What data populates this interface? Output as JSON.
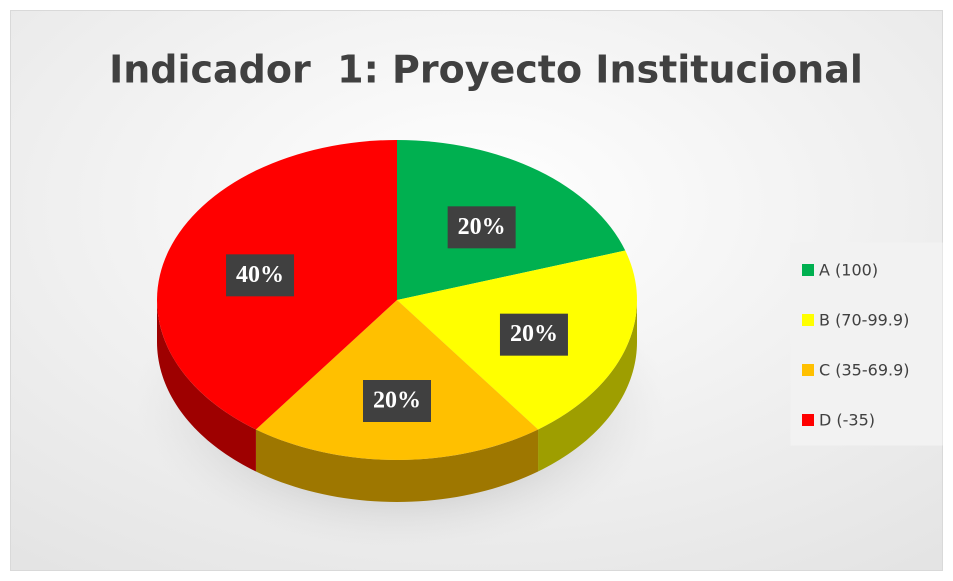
{
  "chart_data": {
    "type": "pie",
    "title": "Indicador  1: Proyecto Institucional",
    "categories": [
      "A (100)",
      "B (70-99.9)",
      "C (35-69.9)",
      "D (-35)"
    ],
    "values": [
      20,
      20,
      20,
      40
    ],
    "value_labels": [
      "20%",
      "20%",
      "20%",
      "40%"
    ],
    "colors": [
      "#00b050",
      "#ffff00",
      "#ffc000",
      "#ff0000"
    ],
    "legend": "right"
  }
}
